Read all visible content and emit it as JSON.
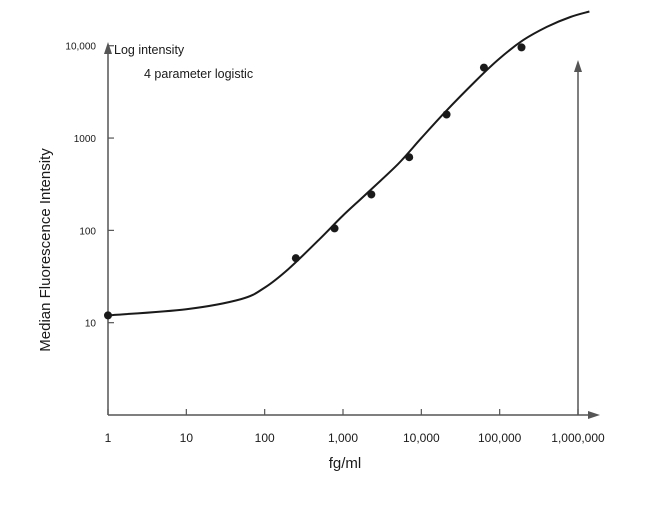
{
  "chart_data": {
    "type": "scatter",
    "title": "",
    "xlabel": "fg/ml",
    "ylabel": "Median Fluorescence Intensity",
    "x_scale": "log",
    "y_scale": "log",
    "xlim": [
      1,
      1000000
    ],
    "ylim": [
      1,
      25000
    ],
    "x_ticks": [
      1,
      10,
      100,
      1000,
      10000,
      100000,
      1000000
    ],
    "x_tick_labels": [
      "1",
      "10",
      "100",
      "1,000",
      "10,000",
      "100,000",
      "1,000,000"
    ],
    "y_ticks": [
      10,
      100,
      1000,
      10000
    ],
    "y_tick_labels": [
      "10",
      "100",
      "1000",
      "10,000"
    ],
    "annotations": [
      "Log intensity",
      "4 parameter logistic"
    ],
    "grid": false,
    "legend": "none",
    "points": [
      {
        "x": 1,
        "y": 12
      },
      {
        "x": 250,
        "y": 50
      },
      {
        "x": 780,
        "y": 105
      },
      {
        "x": 2300,
        "y": 245
      },
      {
        "x": 7000,
        "y": 620
      },
      {
        "x": 21000,
        "y": 1800
      },
      {
        "x": 63000,
        "y": 5800
      },
      {
        "x": 190000,
        "y": 9600
      }
    ],
    "fit": {
      "model": "4 parameter logistic",
      "points": [
        {
          "x": 1,
          "y": 12
        },
        {
          "x": 10,
          "y": 14
        },
        {
          "x": 50,
          "y": 18
        },
        {
          "x": 100,
          "y": 24
        },
        {
          "x": 200,
          "y": 38
        },
        {
          "x": 500,
          "y": 80
        },
        {
          "x": 1000,
          "y": 145
        },
        {
          "x": 2000,
          "y": 250
        },
        {
          "x": 5000,
          "y": 520
        },
        {
          "x": 10000,
          "y": 1000
        },
        {
          "x": 20000,
          "y": 1900
        },
        {
          "x": 50000,
          "y": 4200
        },
        {
          "x": 100000,
          "y": 7300
        },
        {
          "x": 200000,
          "y": 11500
        },
        {
          "x": 400000,
          "y": 16000
        },
        {
          "x": 800000,
          "y": 20500
        },
        {
          "x": 1400000,
          "y": 23500
        }
      ]
    },
    "colors": {
      "ink": "#1a1a1a",
      "axis": "#555555",
      "background": "#ffffff"
    }
  }
}
